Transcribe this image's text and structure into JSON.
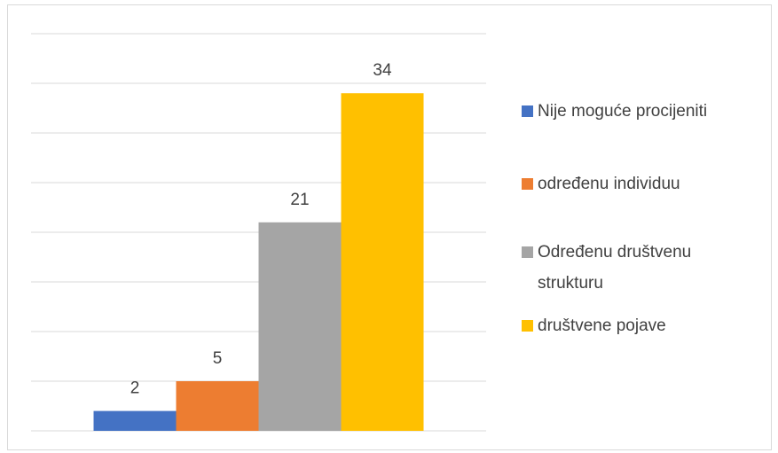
{
  "chart_data": {
    "type": "bar",
    "categories": [
      null
    ],
    "series": [
      {
        "name": "Nije moguće procijeniti",
        "color": "#4472c4",
        "values": [
          2
        ]
      },
      {
        "name": "određenu individuu",
        "color": "#ed7d31",
        "values": [
          5
        ]
      },
      {
        "name": "Određenu društvenu strukturu",
        "color": "#a5a5a5",
        "values": [
          21
        ]
      },
      {
        "name": "društvene pojave",
        "color": "#ffc000",
        "values": [
          34
        ]
      }
    ],
    "ylim": [
      0,
      40
    ],
    "yticks": [
      0,
      5,
      10,
      15,
      20,
      25,
      30,
      35,
      40
    ],
    "grid": true,
    "legend": "right"
  }
}
